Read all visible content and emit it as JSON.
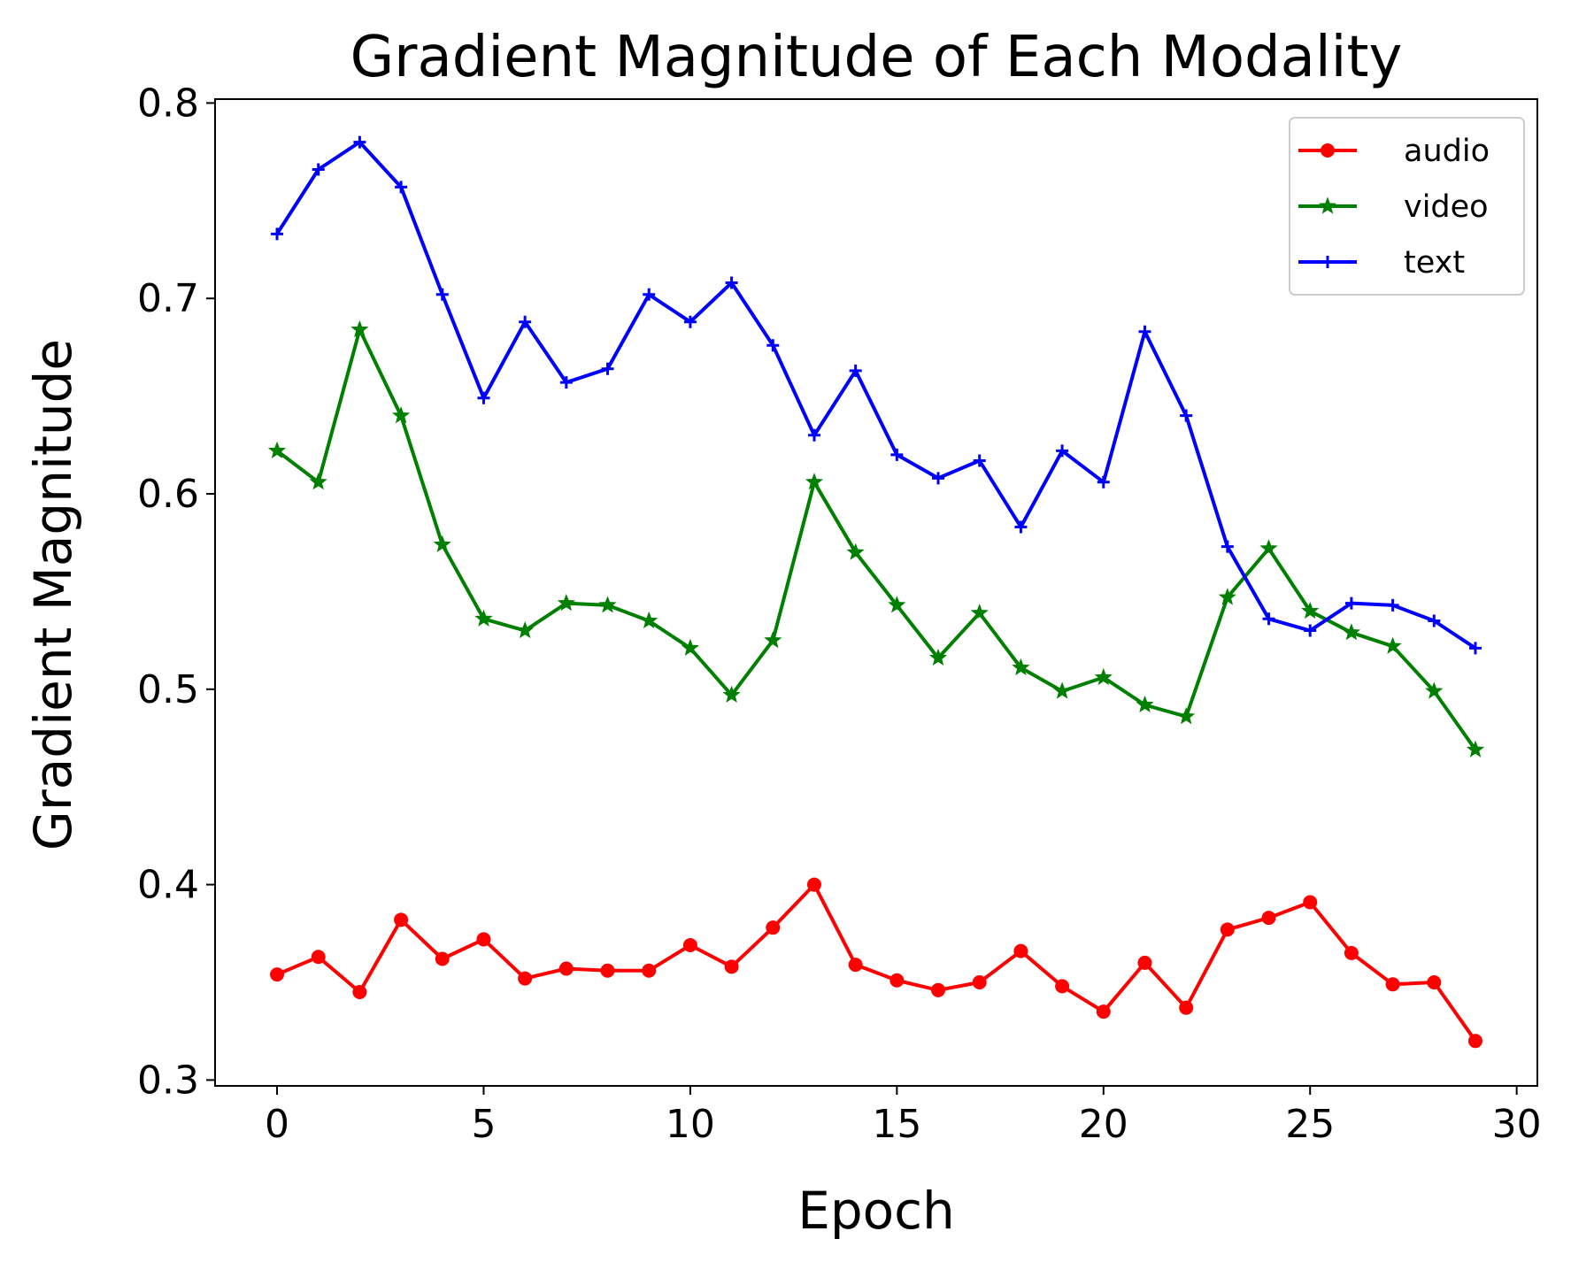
{
  "chart_data": {
    "type": "line",
    "title": "Gradient Magnitude of Each Modality",
    "xlabel": "Epoch",
    "ylabel": "Gradient Magnitude",
    "xlim": [
      -1.5,
      30.5
    ],
    "ylim": [
      0.297,
      0.802
    ],
    "xticks": [
      0,
      5,
      10,
      15,
      20,
      25,
      30
    ],
    "yticks": [
      0.3,
      0.4,
      0.5,
      0.6,
      0.7,
      0.8
    ],
    "grid": false,
    "legend_position": "top-right",
    "x": [
      0,
      1,
      2,
      3,
      4,
      5,
      6,
      7,
      8,
      9,
      10,
      11,
      12,
      13,
      14,
      15,
      16,
      17,
      18,
      19,
      20,
      21,
      22,
      23,
      24,
      25,
      26,
      27,
      28,
      29
    ],
    "series": [
      {
        "name": "audio",
        "color": "#ff0000",
        "marker": "circle",
        "values": [
          0.354,
          0.363,
          0.345,
          0.382,
          0.362,
          0.372,
          0.352,
          0.357,
          0.356,
          0.356,
          0.369,
          0.358,
          0.378,
          0.4,
          0.359,
          0.351,
          0.346,
          0.35,
          0.366,
          0.348,
          0.335,
          0.36,
          0.337,
          0.377,
          0.383,
          0.391,
          0.365,
          0.349,
          0.35,
          0.32
        ]
      },
      {
        "name": "video",
        "color": "#008000",
        "marker": "star",
        "values": [
          0.622,
          0.606,
          0.684,
          0.64,
          0.574,
          0.536,
          0.53,
          0.544,
          0.543,
          0.535,
          0.521,
          0.497,
          0.525,
          0.606,
          0.57,
          0.543,
          0.516,
          0.539,
          0.511,
          0.499,
          0.506,
          0.492,
          0.486,
          0.547,
          0.572,
          0.54,
          0.529,
          0.522,
          0.499,
          0.469
        ]
      },
      {
        "name": "text",
        "color": "#0000ff",
        "marker": "plus",
        "values": [
          0.733,
          0.766,
          0.78,
          0.757,
          0.702,
          0.649,
          0.688,
          0.657,
          0.664,
          0.702,
          0.688,
          0.708,
          0.676,
          0.63,
          0.663,
          0.62,
          0.608,
          0.617,
          0.583,
          0.622,
          0.606,
          0.683,
          0.64,
          0.573,
          0.536,
          0.53,
          0.544,
          0.543,
          0.535,
          0.521
        ]
      }
    ]
  }
}
